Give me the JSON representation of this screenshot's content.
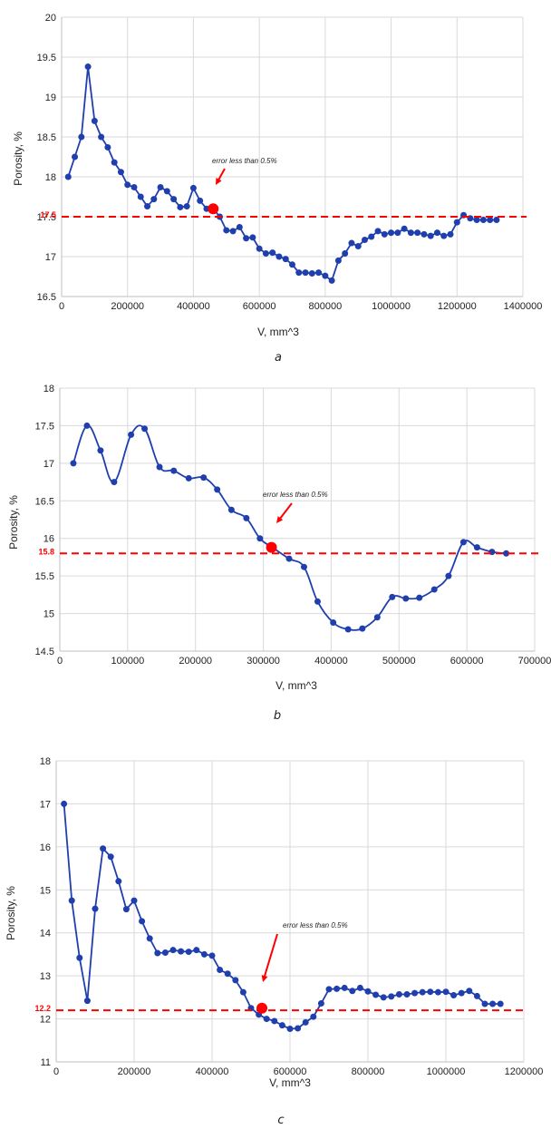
{
  "colors": {
    "series": "#1f3fae",
    "reference": "#ff0000",
    "marker": "#ff0000",
    "grid": "#d9d9d9"
  },
  "chart_data": [
    {
      "type": "line",
      "caption": "a",
      "xlabel": "V, mm^3",
      "ylabel": "Porosity, %",
      "xlim": [
        0,
        1400000
      ],
      "ylim": [
        16.5,
        20
      ],
      "xticks": [
        "0",
        "200000",
        "400000",
        "600000",
        "800000",
        "1000000",
        "1200000",
        "1400000"
      ],
      "yticks": [
        "16.5",
        "17",
        "17.5",
        "18",
        "18.5",
        "19",
        "19.5",
        "20"
      ],
      "grid": true,
      "reference_line": {
        "y": 17.5,
        "label": "17.5"
      },
      "highlight_point": {
        "x": 460000,
        "y": 17.6
      },
      "annotation": "error less than 0.5%",
      "series": [
        {
          "x": [
            20000,
            40000,
            60000,
            80000,
            100000,
            120000,
            140000,
            160000,
            180000,
            200000,
            220000,
            240000,
            260000,
            280000,
            300000,
            320000,
            340000,
            360000,
            380000,
            400000,
            420000,
            440000,
            460000,
            480000,
            500000,
            520000,
            540000,
            560000,
            580000,
            600000,
            620000,
            640000,
            660000,
            680000,
            700000,
            720000,
            740000,
            760000,
            780000,
            800000,
            820000,
            840000,
            860000,
            880000,
            900000,
            920000,
            940000,
            960000,
            980000,
            1000000,
            1020000,
            1040000,
            1060000,
            1080000,
            1100000,
            1120000,
            1140000,
            1160000,
            1180000,
            1200000,
            1220000,
            1240000,
            1260000,
            1280000,
            1300000,
            1320000
          ],
          "y": [
            18.0,
            18.25,
            18.5,
            19.38,
            18.7,
            18.5,
            18.37,
            18.18,
            18.06,
            17.9,
            17.87,
            17.75,
            17.63,
            17.72,
            17.87,
            17.82,
            17.72,
            17.62,
            17.63,
            17.86,
            17.7,
            17.6,
            17.6,
            17.5,
            17.33,
            17.32,
            17.37,
            17.23,
            17.24,
            17.1,
            17.04,
            17.05,
            17.0,
            16.97,
            16.9,
            16.8,
            16.8,
            16.79,
            16.8,
            16.76,
            16.7,
            16.95,
            17.04,
            17.17,
            17.13,
            17.21,
            17.25,
            17.32,
            17.28,
            17.3,
            17.3,
            17.35,
            17.3,
            17.3,
            17.28,
            17.26,
            17.3,
            17.26,
            17.28,
            17.43,
            17.52,
            17.48,
            17.46,
            17.46,
            17.46,
            17.46
          ]
        }
      ]
    },
    {
      "type": "line",
      "caption": "b",
      "xlabel": "V, mm^3",
      "ylabel": "Porosity, %",
      "xlim": [
        0,
        700000
      ],
      "ylim": [
        14.5,
        18
      ],
      "xticks": [
        "0",
        "100000",
        "200000",
        "300000",
        "400000",
        "500000",
        "600000",
        "700000"
      ],
      "yticks": [
        "14.5",
        "15",
        "15.5",
        "16",
        "16.5",
        "17",
        "17.5",
        "18"
      ],
      "grid": true,
      "reference_line": {
        "y": 15.8,
        "label": "15.8"
      },
      "highlight_point": {
        "x": 312000,
        "y": 15.88
      },
      "annotation": "error less than 0.5%",
      "series": [
        {
          "x": [
            20000,
            40000,
            60000,
            80000,
            105000,
            125000,
            147000,
            168000,
            190000,
            212000,
            232000,
            253000,
            275000,
            295000,
            315000,
            338000,
            360000,
            380000,
            403000,
            425000,
            446000,
            468000,
            490000,
            510000,
            530000,
            552000,
            573000,
            595000,
            615000,
            637000,
            658000
          ],
          "y": [
            17.0,
            17.5,
            17.17,
            16.75,
            17.38,
            17.46,
            16.95,
            16.9,
            16.8,
            16.81,
            16.65,
            16.38,
            16.27,
            16.0,
            15.87,
            15.73,
            15.62,
            15.16,
            14.88,
            14.79,
            14.8,
            14.95,
            15.22,
            15.2,
            15.21,
            15.32,
            15.5,
            15.95,
            15.88,
            15.82,
            15.8
          ]
        }
      ]
    },
    {
      "type": "line",
      "caption": "c",
      "xlabel": "V, mm^3",
      "ylabel": "Porosity, %",
      "xlim": [
        0,
        1200000
      ],
      "ylim": [
        11,
        18
      ],
      "xticks": [
        "0",
        "200000",
        "400000",
        "600000",
        "800000",
        "1000000",
        "1200000"
      ],
      "yticks": [
        "11",
        "12",
        "13",
        "14",
        "15",
        "16",
        "17",
        "18"
      ],
      "grid": true,
      "reference_line": {
        "y": 12.2,
        "label": "12.2"
      },
      "highlight_point": {
        "x": 528000,
        "y": 12.25
      },
      "annotation": "error less than 0.5%",
      "series": [
        {
          "x": [
            20000,
            40000,
            60000,
            80000,
            100000,
            120000,
            140000,
            160000,
            180000,
            200000,
            220000,
            240000,
            260000,
            280000,
            300000,
            320000,
            340000,
            360000,
            380000,
            400000,
            420000,
            440000,
            460000,
            480000,
            500000,
            520000,
            540000,
            560000,
            580000,
            600000,
            620000,
            640000,
            660000,
            680000,
            700000,
            720000,
            740000,
            760000,
            780000,
            800000,
            820000,
            840000,
            860000,
            880000,
            900000,
            920000,
            940000,
            960000,
            980000,
            1000000,
            1020000,
            1040000,
            1060000,
            1080000,
            1100000,
            1120000,
            1140000
          ],
          "y": [
            17.0,
            14.75,
            13.42,
            12.42,
            14.56,
            15.96,
            15.77,
            15.2,
            14.55,
            14.75,
            14.27,
            13.87,
            13.53,
            13.54,
            13.6,
            13.57,
            13.56,
            13.6,
            13.5,
            13.47,
            13.14,
            13.05,
            12.9,
            12.62,
            12.25,
            12.1,
            12.0,
            11.95,
            11.85,
            11.77,
            11.78,
            11.92,
            12.05,
            12.36,
            12.69,
            12.7,
            12.72,
            12.65,
            12.72,
            12.64,
            12.56,
            12.5,
            12.52,
            12.57,
            12.57,
            12.6,
            12.62,
            12.63,
            12.62,
            12.63,
            12.55,
            12.6,
            12.65,
            12.53,
            12.35,
            12.35,
            12.35
          ]
        }
      ]
    }
  ]
}
